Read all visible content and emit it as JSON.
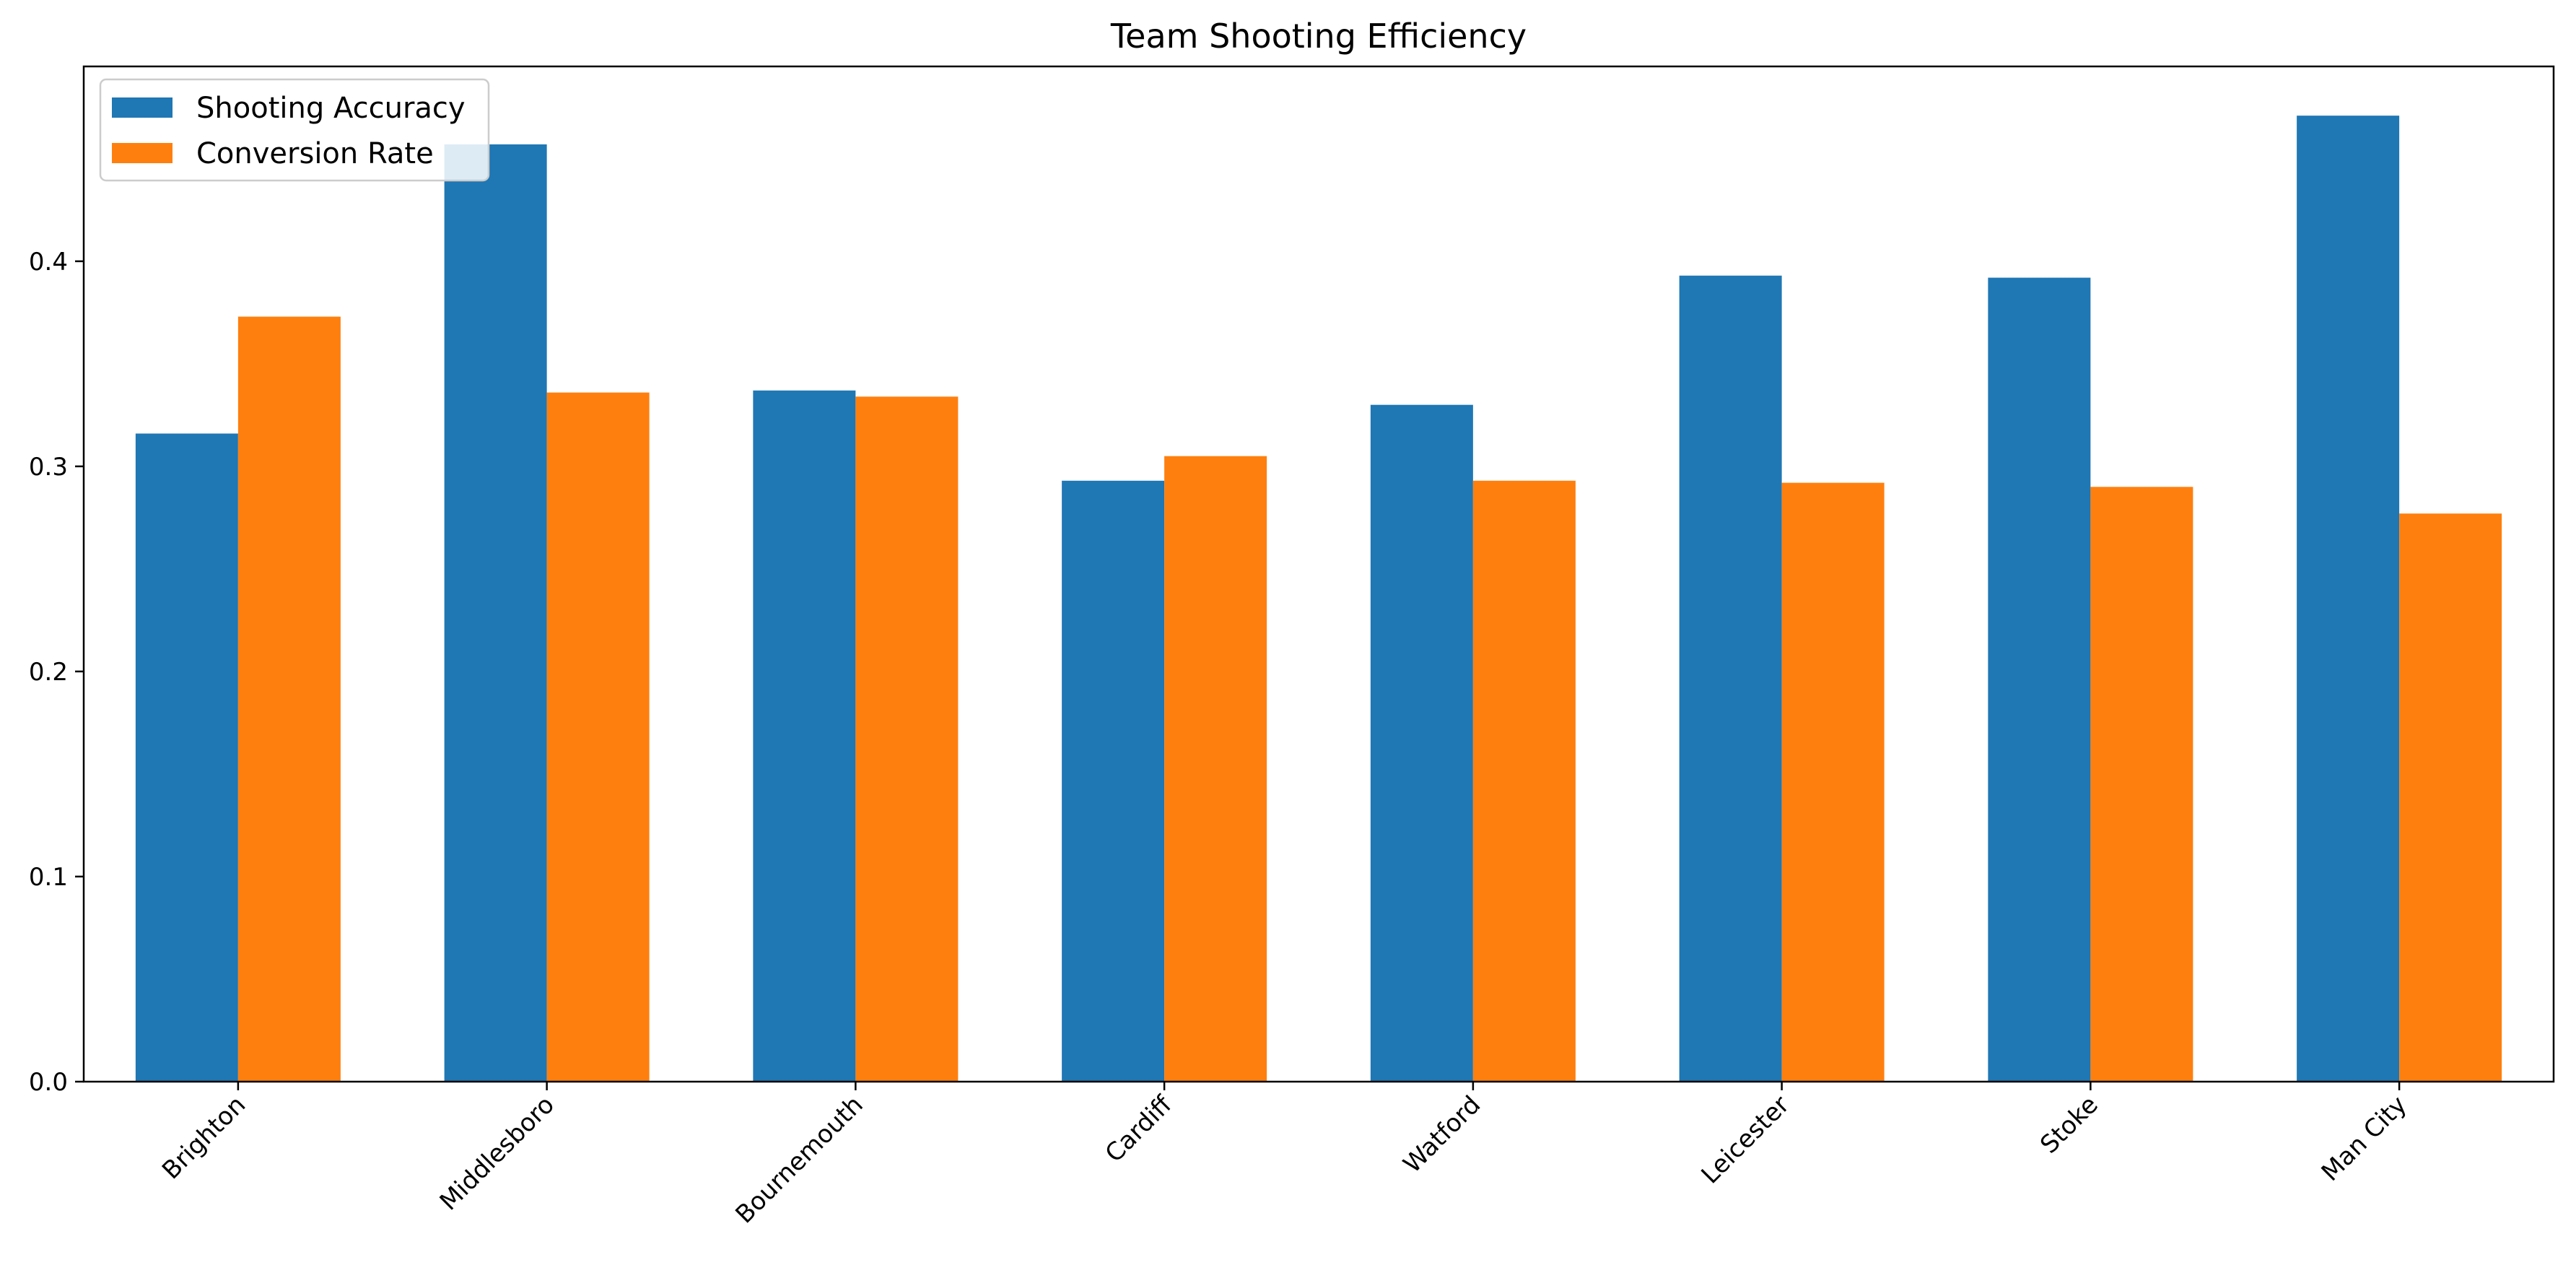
{
  "chart_data": {
    "type": "bar",
    "title": "Team Shooting Efficiency",
    "xlabel": "",
    "ylabel": "",
    "categories": [
      "Brighton",
      "Middlesboro",
      "Bournemouth",
      "Cardiff",
      "Watford",
      "Leicester",
      "Stoke",
      "Man City"
    ],
    "series": [
      {
        "name": "Shooting Accuracy",
        "color": "#1f77b4",
        "values": [
          0.316,
          0.457,
          0.337,
          0.293,
          0.33,
          0.393,
          0.392,
          0.471
        ]
      },
      {
        "name": "Conversion Rate",
        "color": "#ff7f0e",
        "values": [
          0.373,
          0.336,
          0.334,
          0.305,
          0.293,
          0.292,
          0.29,
          0.277
        ]
      }
    ],
    "ylim": [
      0,
      0.495
    ],
    "yticks": [
      "0.0",
      "0.1",
      "0.2",
      "0.3",
      "0.4"
    ],
    "legend_position": "top-left",
    "grid": false,
    "xtick_rotation": 45
  }
}
